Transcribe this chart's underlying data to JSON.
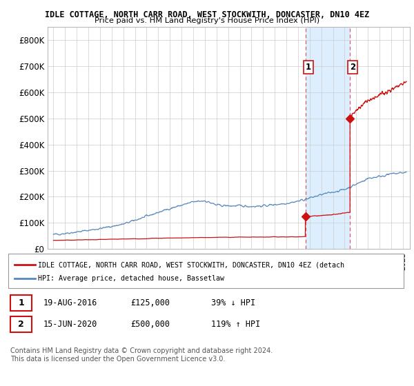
{
  "title1": "IDLE COTTAGE, NORTH CARR ROAD, WEST STOCKWITH, DONCASTER, DN10 4EZ",
  "title2": "Price paid vs. HM Land Registry's House Price Index (HPI)",
  "ylim": [
    0,
    850000
  ],
  "yticks": [
    0,
    100000,
    200000,
    300000,
    400000,
    500000,
    600000,
    700000,
    800000
  ],
  "ytick_labels": [
    "£0",
    "£100K",
    "£200K",
    "£300K",
    "£400K",
    "£500K",
    "£600K",
    "£700K",
    "£800K"
  ],
  "hpi_color": "#5588bb",
  "sale_color": "#cc1111",
  "dashed_line_color": "#dd4444",
  "shade_color": "#ddeeff",
  "sale1_x": 2016.63,
  "sale1_y": 125000,
  "sale2_x": 2020.46,
  "sale2_y": 500000,
  "legend_sale_label": "IDLE COTTAGE, NORTH CARR ROAD, WEST STOCKWITH, DONCASTER, DN10 4EZ (detach",
  "legend_hpi_label": "HPI: Average price, detached house, Bassetlaw",
  "footnote": "Contains HM Land Registry data © Crown copyright and database right 2024.\nThis data is licensed under the Open Government Licence v3.0.",
  "table_rows": [
    {
      "num": "1",
      "date": "19-AUG-2016",
      "price": "£125,000",
      "hpi": "39% ↓ HPI"
    },
    {
      "num": "2",
      "date": "15-JUN-2020",
      "price": "£500,000",
      "hpi": "119% ↑ HPI"
    }
  ],
  "background_color": "#ffffff",
  "xlim_left": 1994.5,
  "xlim_right": 2025.6
}
